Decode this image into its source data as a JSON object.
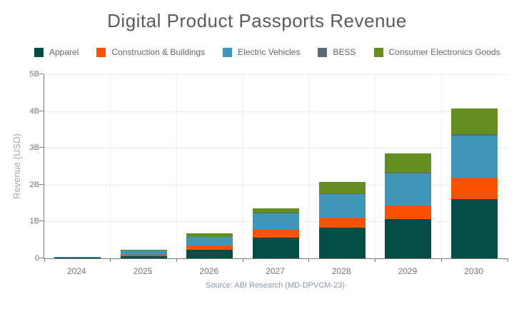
{
  "title": "Digital Product Passports Revenue",
  "y_axis": {
    "title": "Revenue (USD)"
  },
  "source": "Source: ABI Research (MD-DPVCM-23)",
  "colors": {
    "apparel": "#054c44",
    "construction_buildings": "#fc5200",
    "electric_vehicles": "#4195b7",
    "bess": "#586a75",
    "consumer_electronics_goods": "#648c1e",
    "axis_line": "#7a7a7a",
    "gridline": "#ebebeb",
    "title_text": "#5b5b5b",
    "tick_text": "#757575",
    "source_text": "#8d98a7"
  },
  "chart_data": {
    "type": "bar",
    "stacked": true,
    "title": "Digital Product Passports Revenue",
    "categories": [
      "2024",
      "2025",
      "2026",
      "2027",
      "2028",
      "2029",
      "2030"
    ],
    "series": [
      {
        "name": "Apparel",
        "color": "#054c44",
        "values": [
          0.01,
          0.05,
          0.24,
          0.57,
          0.83,
          1.07,
          1.6
        ]
      },
      {
        "name": "Construction & Buildings",
        "color": "#fc5200",
        "values": [
          0.005,
          0.055,
          0.11,
          0.21,
          0.27,
          0.37,
          0.59
        ]
      },
      {
        "name": "Electric Vehicles",
        "color": "#4195b7",
        "values": [
          0.02,
          0.1,
          0.23,
          0.44,
          0.65,
          0.86,
          1.15
        ]
      },
      {
        "name": "BESS",
        "color": "#586a75",
        "values": [
          0.002,
          0.005,
          0.01,
          0.015,
          0.02,
          0.03,
          0.04
        ]
      },
      {
        "name": "Consumer Electronics Goods",
        "color": "#648c1e",
        "values": [
          0.003,
          0.03,
          0.08,
          0.12,
          0.3,
          0.52,
          0.7
        ]
      }
    ],
    "totals_approx": [
      0.04,
      0.24,
      0.67,
      1.36,
      2.07,
      2.85,
      4.08
    ],
    "unit": "billions USD",
    "xlabel": "",
    "ylabel": "Revenue (USD)",
    "ylim": [
      0,
      5
    ],
    "ytick_labels": [
      "0",
      "1B",
      "2B",
      "3B",
      "4B",
      "5B"
    ],
    "grid": true,
    "legend_position": "top",
    "source": "Source: ABI Research (MD-DPVCM-23)"
  }
}
